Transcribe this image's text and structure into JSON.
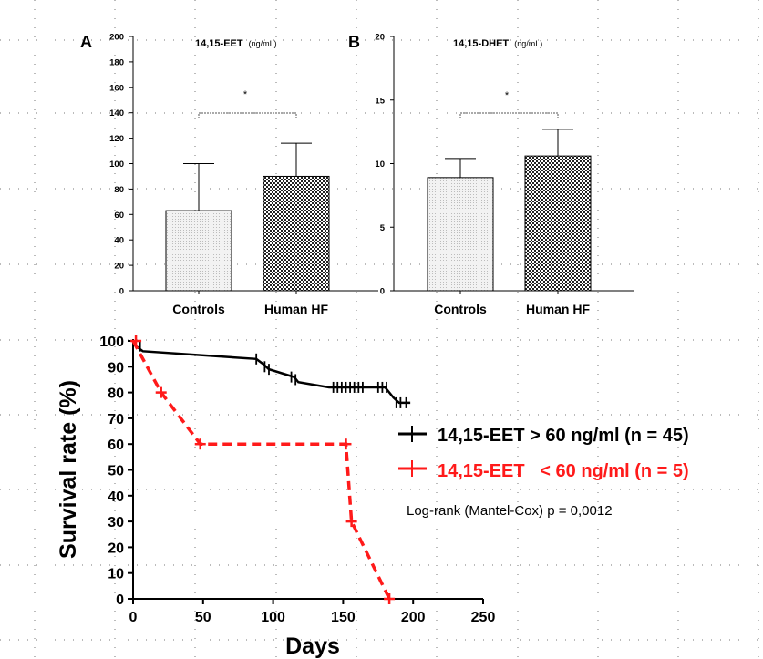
{
  "chart_data": [
    {
      "id": "A",
      "type": "bar",
      "panel_label": "A",
      "title": "14,15-EET",
      "title_unit": "(ng/mL)",
      "categories": [
        "Controls",
        "Human HF"
      ],
      "values": [
        63,
        90
      ],
      "errors": [
        37,
        26
      ],
      "ylim": [
        0,
        200
      ],
      "yticks": [
        0,
        20,
        40,
        60,
        80,
        100,
        120,
        140,
        160,
        180,
        200
      ],
      "significance": "*",
      "bar_fills": [
        "light-stipple",
        "dark-checker"
      ]
    },
    {
      "id": "B",
      "type": "bar",
      "panel_label": "B",
      "title": "14,15-DHET",
      "title_unit": "(ng/mL)",
      "categories": [
        "Controls",
        "Human HF"
      ],
      "values": [
        8.9,
        10.6
      ],
      "errors": [
        1.5,
        2.1
      ],
      "ylim": [
        0,
        20
      ],
      "yticks": [
        0,
        5,
        10,
        15,
        20
      ],
      "significance": "*",
      "bar_fills": [
        "light-stipple",
        "dark-checker"
      ]
    },
    {
      "id": "C",
      "type": "line",
      "xlabel": "Days",
      "ylabel": "Survival rate (%)",
      "xlim": [
        0,
        250
      ],
      "ylim": [
        0,
        100
      ],
      "xticks": [
        0,
        50,
        100,
        150,
        200,
        250
      ],
      "yticks": [
        0,
        10,
        20,
        30,
        40,
        50,
        60,
        70,
        80,
        90,
        100
      ],
      "series": [
        {
          "name": "14,15-EET > 60 ng/ml (n = 45)",
          "color": "#000000",
          "style": "solid-step",
          "steps": [
            [
              0,
              100
            ],
            [
              2,
              98
            ],
            [
              7,
              96
            ],
            [
              88,
              93
            ],
            [
              93,
              91
            ],
            [
              97,
              89
            ],
            [
              115,
              86
            ],
            [
              118,
              84
            ],
            [
              140,
              82
            ],
            [
              180,
              82
            ],
            [
              186,
              78
            ],
            [
              190,
              76
            ],
            [
              198,
              76
            ]
          ],
          "censors": [
            [
              5,
              98
            ],
            [
              88,
              93
            ],
            [
              94,
              90
            ],
            [
              97,
              89
            ],
            [
              113,
              86
            ],
            [
              116,
              85
            ],
            [
              143,
              82
            ],
            [
              146,
              82
            ],
            [
              149,
              82
            ],
            [
              152,
              82
            ],
            [
              155,
              82
            ],
            [
              158,
              82
            ],
            [
              161,
              82
            ],
            [
              164,
              82
            ],
            [
              175,
              82
            ],
            [
              178,
              82
            ],
            [
              181,
              82
            ],
            [
              188,
              76
            ],
            [
              191,
              76
            ],
            [
              195,
              76
            ]
          ]
        },
        {
          "name": "14,15-EET   < 60 ng/ml (n = 5)",
          "color": "#ff1a1a",
          "style": "dashed",
          "points": [
            [
              0,
              100
            ],
            [
              20,
              80
            ],
            [
              48,
              60
            ],
            [
              152,
              60
            ],
            [
              156,
              30
            ],
            [
              183,
              0
            ]
          ],
          "censors": [
            [
              2,
              100
            ],
            [
              20,
              80
            ],
            [
              48,
              60
            ],
            [
              152,
              60
            ],
            [
              156,
              30
            ],
            [
              183,
              0
            ]
          ]
        }
      ],
      "legend_position": "right",
      "annotation": "Log-rank (Mantel-Cox) p = 0,0012"
    }
  ]
}
